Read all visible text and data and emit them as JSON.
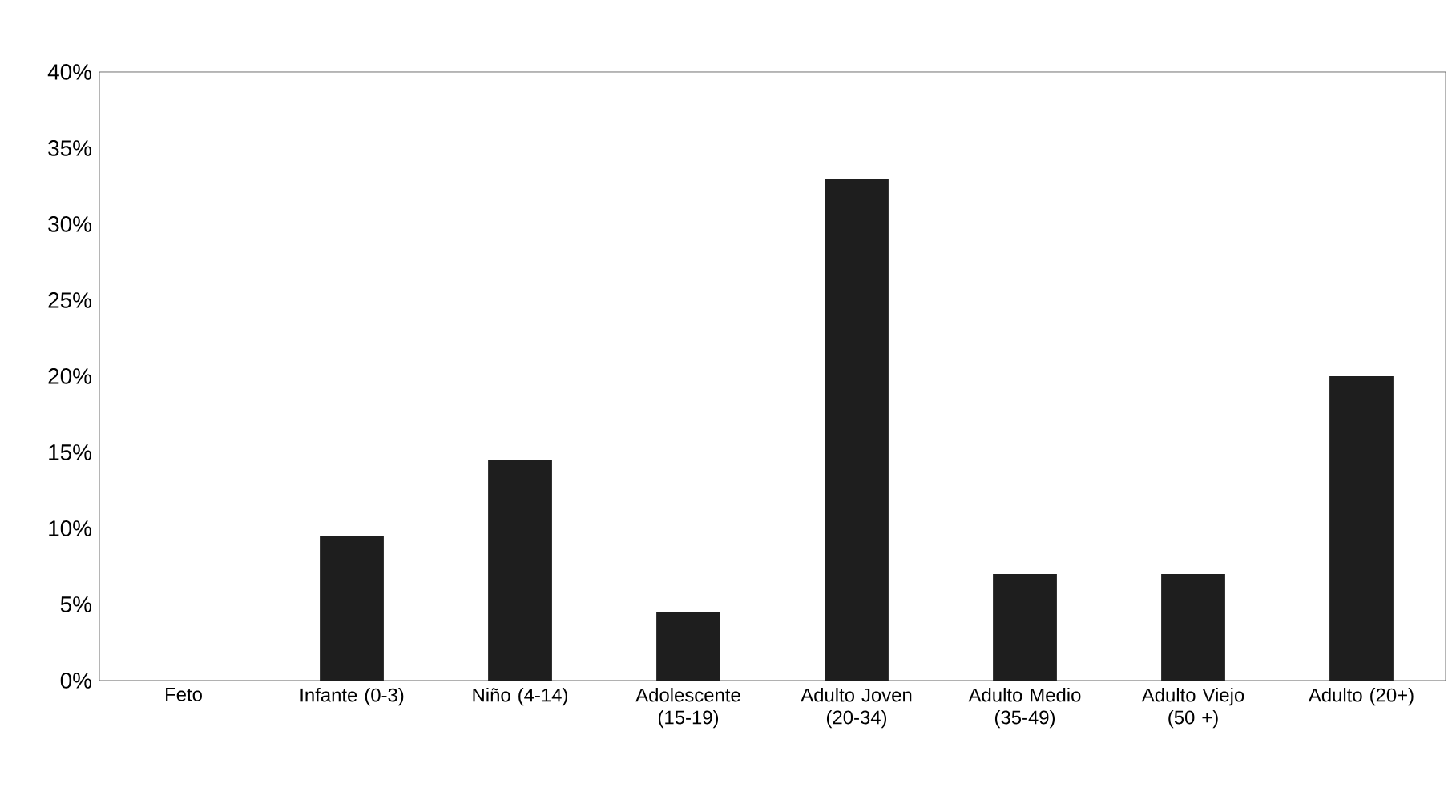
{
  "chart_data": {
    "type": "bar",
    "categories": [
      "Feto",
      "Infante (0-3)",
      "Niño (4-14)",
      "Adolescente (15-19)",
      "Adulto Joven (20-34)",
      "Adulto Medio (35-49)",
      "Adulto Viejo (50 +)",
      "Adulto (20+)"
    ],
    "values": [
      0,
      9.5,
      14.5,
      4.5,
      33,
      7,
      7,
      20
    ],
    "color": "#1e1e1e",
    "ylim": [
      0,
      40
    ],
    "yticks": [
      {
        "value": 0,
        "label": "0%"
      },
      {
        "value": 5,
        "label": "5%"
      },
      {
        "value": 10,
        "label": "10%"
      },
      {
        "value": 15,
        "label": "15%"
      },
      {
        "value": 20,
        "label": "20%"
      },
      {
        "value": 25,
        "label": "25%"
      },
      {
        "value": 30,
        "label": "30%"
      },
      {
        "value": 35,
        "label": "35%"
      },
      {
        "value": 40,
        "label": "40%"
      }
    ],
    "grid": false
  }
}
